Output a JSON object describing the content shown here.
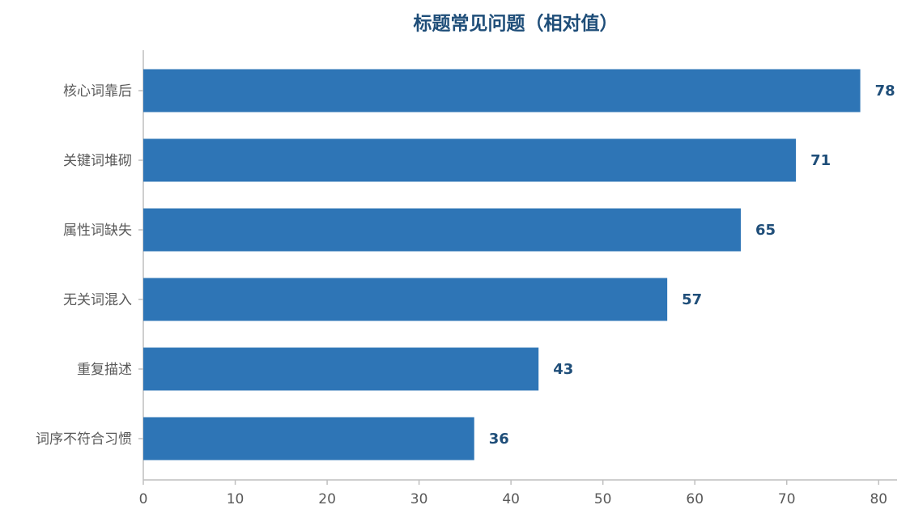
{
  "chart_data": {
    "type": "bar",
    "orientation": "horizontal",
    "title": "标题常见问题（相对值）",
    "categories": [
      "核心词靠后",
      "关键词堆砌",
      "属性词缺失",
      "无关词混入",
      "重复描述",
      "词序不符合习惯"
    ],
    "values": [
      78,
      71,
      65,
      57,
      43,
      36
    ],
    "color": "#2e75b6",
    "value_label_color": "#1f4e79",
    "xlim": [
      0,
      82
    ],
    "xticks": [
      0,
      10,
      20,
      30,
      40,
      50,
      60,
      70,
      80
    ],
    "grid": false
  }
}
